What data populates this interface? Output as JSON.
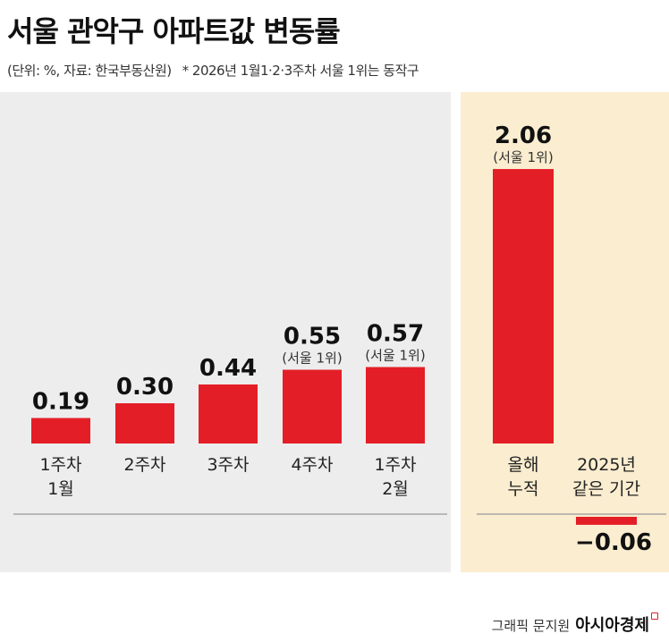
{
  "header": {
    "title": "서울 관악구 아파트값 변동률",
    "unit_source": "(단위: %, 자료: 한국부동산원)",
    "footnote": "* 2026년 1월1·2·3주차 서울 1위는 동작구"
  },
  "credit": {
    "text": "그래픽 문지원",
    "brand": "아시아경제"
  },
  "colors": {
    "bar": "#e41e26",
    "left_panel": "#ededed",
    "right_panel": "#faedd0",
    "axis": "#999999"
  },
  "chart_data": [
    {
      "type": "bar",
      "categories": [
        [
          "1주차",
          "1월"
        ],
        [
          "2주차"
        ],
        [
          "3주차"
        ],
        [
          "4주차"
        ],
        [
          "1주차",
          "2월"
        ]
      ],
      "values": [
        0.19,
        0.3,
        0.44,
        0.55,
        0.57
      ],
      "value_labels": [
        "0.19",
        "0.30",
        "0.44",
        "0.55",
        "0.57"
      ],
      "annotations": [
        "",
        "",
        "",
        "(서울 1위)",
        "(서울 1위)"
      ]
    },
    {
      "type": "bar",
      "categories": [
        [
          "올해",
          "누적"
        ],
        [
          "2025년",
          "같은 기간"
        ]
      ],
      "values": [
        2.06,
        -0.06
      ],
      "value_labels": [
        "2.06",
        "−0.06"
      ],
      "annotations": [
        "(서울 1위)",
        ""
      ]
    }
  ]
}
